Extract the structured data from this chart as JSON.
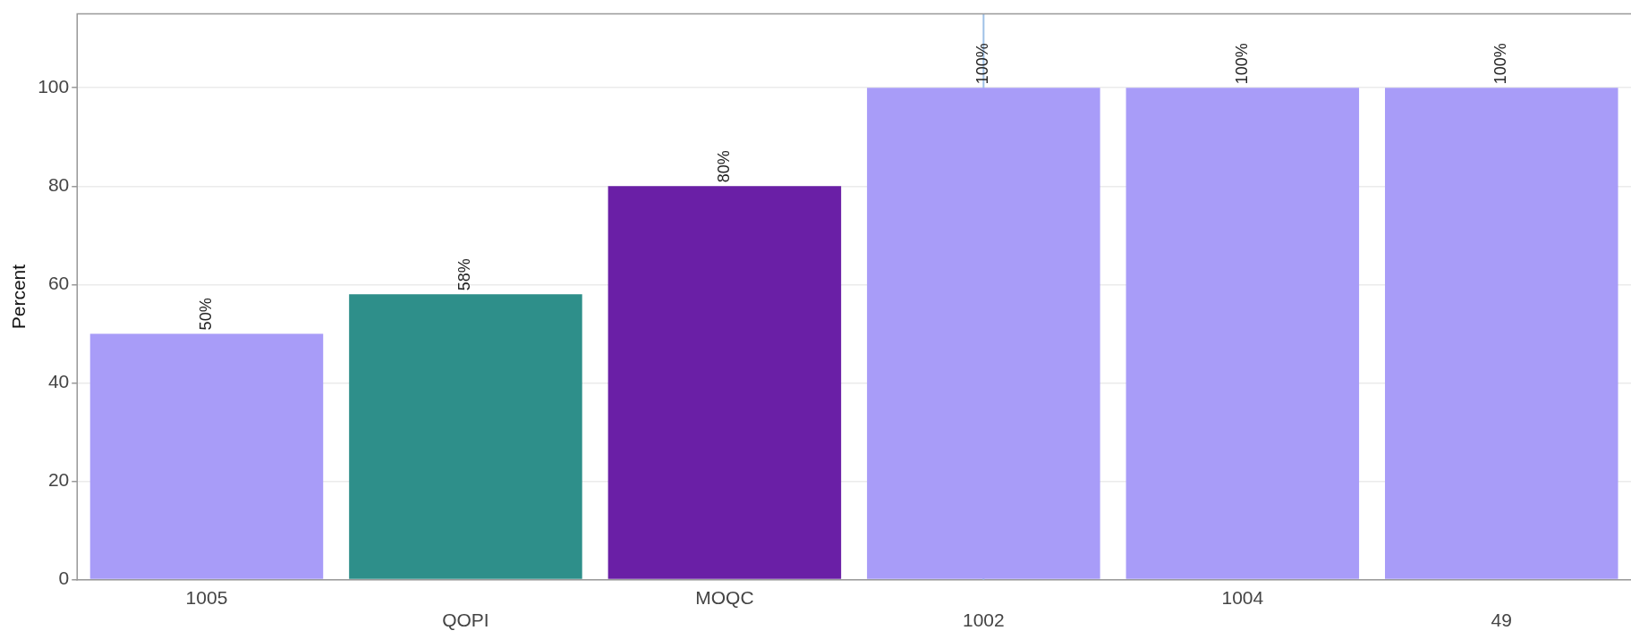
{
  "chart_data": {
    "type": "bar",
    "ylabel": "Percent",
    "categories": [
      "1005",
      "QOPI",
      "MOQC",
      "1002",
      "1004",
      "49"
    ],
    "values": [
      50,
      58,
      80,
      100,
      100,
      100
    ],
    "colors": [
      "#a89cf8",
      "#2e8f8a",
      "#6a1fa6",
      "#a89cf8",
      "#a89cf8",
      "#a89cf8"
    ],
    "value_labels": [
      "50%",
      "58%",
      "80%",
      "100%",
      "100%",
      "100%"
    ],
    "ylim": [
      0,
      115
    ],
    "yticks": [
      0,
      20,
      40,
      60,
      80,
      100
    ],
    "grid": "y",
    "legend": false,
    "ref_lines": [
      {
        "axis": "x",
        "value": "1002",
        "color": "#9ec1e6"
      }
    ]
  }
}
